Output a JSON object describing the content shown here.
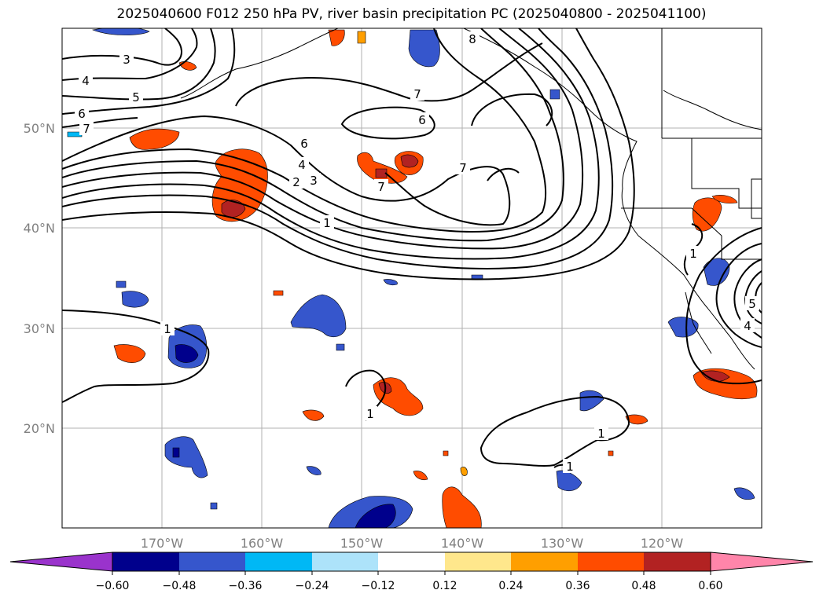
{
  "title": "2025040600 F012 250 hPa PV, river basin precipitation PC (2025040800 - 2025041100)",
  "lon_ticks": [
    "170°W",
    "160°W",
    "150°W",
    "140°W",
    "130°W",
    "120°W"
  ],
  "lat_ticks": [
    "50°N",
    "40°N",
    "30°N",
    "20°N"
  ],
  "colorbar": {
    "ticks": [
      "−0.60",
      "−0.48",
      "−0.36",
      "−0.24",
      "−0.12",
      "0.12",
      "0.24",
      "0.36",
      "0.48",
      "0.60"
    ],
    "colors": [
      "#9a33cc",
      "#00008c",
      "#3656cc",
      "#00b8f5",
      "#ade3fa",
      "#ffffff",
      "#ffe78c",
      "#ff9f00",
      "#ff4c00",
      "#b22222",
      "#ff85aa"
    ]
  },
  "contour_labels": [
    {
      "text": "3"
    },
    {
      "text": "4"
    },
    {
      "text": "5"
    },
    {
      "text": "6"
    },
    {
      "text": "7"
    },
    {
      "text": "6"
    },
    {
      "text": "4"
    },
    {
      "text": "3"
    },
    {
      "text": "2"
    },
    {
      "text": "1"
    },
    {
      "text": "7"
    },
    {
      "text": "6"
    },
    {
      "text": "7"
    },
    {
      "text": "1"
    },
    {
      "text": "1"
    },
    {
      "text": "1"
    },
    {
      "text": "1"
    },
    {
      "text": "1"
    },
    {
      "text": "5"
    },
    {
      "text": "4"
    },
    {
      "text": "8"
    },
    {
      "text": "7"
    }
  ]
}
